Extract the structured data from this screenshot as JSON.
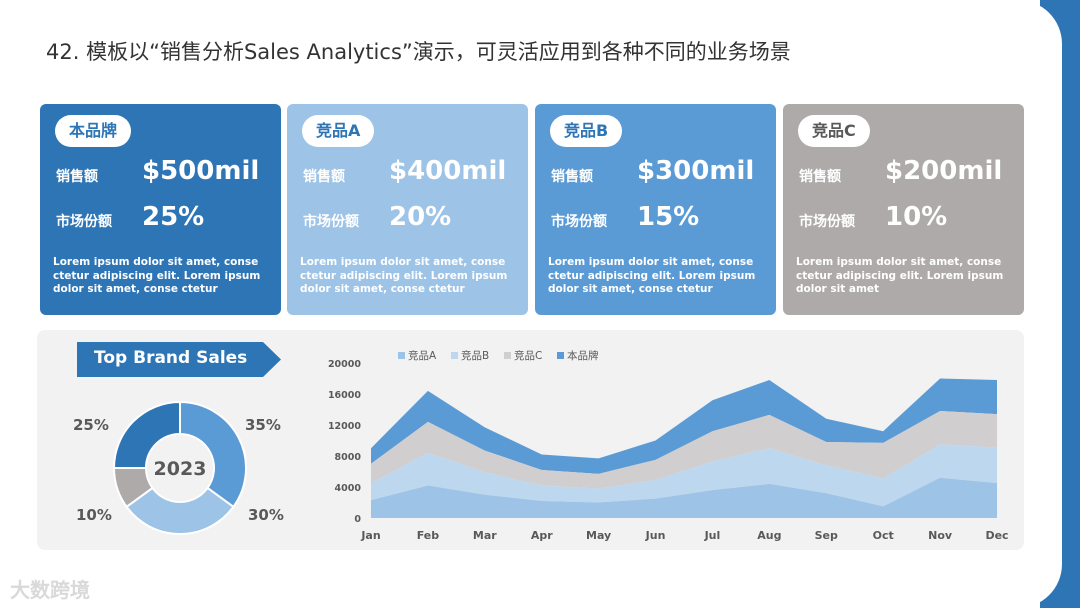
{
  "title": "42. 模板以“销售分析Sales Analytics”演示，可灵活应用到各种不同的业务场景",
  "cards": [
    {
      "name": "本品牌",
      "sales_label": "销售额",
      "sales": "$500mil",
      "share_label": "市场份额",
      "share": "25%",
      "desc": "Lorem ipsum dolor sit amet, conse ctetur adipiscing elit. Lorem ipsum dolor sit amet, conse ctetur",
      "color": "#2e75b6",
      "pill_text": "#2e75b6"
    },
    {
      "name": "竞品A",
      "sales_label": "销售额",
      "sales": "$400mil",
      "share_label": "市场份额",
      "share": "20%",
      "desc": "Lorem ipsum dolor sit amet, conse ctetur adipiscing elit. Lorem ipsum dolor sit amet, conse ctetur",
      "color": "#9dc3e6",
      "pill_text": "#2e75b6"
    },
    {
      "name": "竞品B",
      "sales_label": "销售额",
      "sales": "$300mil",
      "share_label": "市场份额",
      "share": "15%",
      "desc": "Lorem ipsum dolor sit amet, conse ctetur adipiscing elit. Lorem ipsum dolor sit amet, conse ctetur",
      "color": "#5b9bd5",
      "pill_text": "#2e75b6"
    },
    {
      "name": "竞品C",
      "sales_label": "销售额",
      "sales": "$200mil",
      "share_label": "市场份额",
      "share": "10%",
      "desc": "Lorem ipsum dolor sit amet, conse ctetur adipiscing elit. Lorem ipsum dolor sit amet",
      "color": "#aeaaaa",
      "pill_text": "#595959"
    }
  ],
  "banner": "Top Brand Sales",
  "watermark": "大数跨境",
  "chart_data": [
    {
      "type": "pie",
      "variant": "donut",
      "center_label": "2023",
      "slices": [
        {
          "label": "35%",
          "value": 35,
          "color": "#5b9bd5"
        },
        {
          "label": "30%",
          "value": 30,
          "color": "#9dc3e6"
        },
        {
          "label": "10%",
          "value": 10,
          "color": "#aeaaaa"
        },
        {
          "label": "25%",
          "value": 25,
          "color": "#2e75b6"
        }
      ]
    },
    {
      "type": "area",
      "stacked": true,
      "categories": [
        "Jan",
        "Feb",
        "Mar",
        "Apr",
        "May",
        "Jun",
        "Jul",
        "Aug",
        "Sep",
        "Oct",
        "Nov",
        "Dec"
      ],
      "ylim": [
        0,
        20000
      ],
      "yticks": [
        0,
        4000,
        8000,
        12000,
        16000,
        20000
      ],
      "grid": false,
      "legend": "top",
      "series": [
        {
          "name": "竞品A",
          "color": "#9dc3e6",
          "values": [
            2300,
            4200,
            3000,
            2200,
            2000,
            2500,
            3600,
            4400,
            3200,
            1500,
            5200,
            4500
          ]
        },
        {
          "name": "竞品B",
          "color": "#bdd7ee",
          "values": [
            2200,
            4200,
            2900,
            2000,
            1800,
            2400,
            3700,
            4600,
            3600,
            3600,
            4300,
            4600
          ]
        },
        {
          "name": "竞品C",
          "color": "#d0cece",
          "values": [
            2500,
            4000,
            2800,
            2000,
            1900,
            2600,
            3900,
            4300,
            3000,
            4600,
            4300,
            4300
          ]
        },
        {
          "name": "本品牌",
          "color": "#5b9bd5",
          "values": [
            2000,
            4000,
            3000,
            2000,
            2000,
            2500,
            4000,
            4500,
            3000,
            1500,
            4200,
            4400
          ]
        }
      ]
    }
  ]
}
